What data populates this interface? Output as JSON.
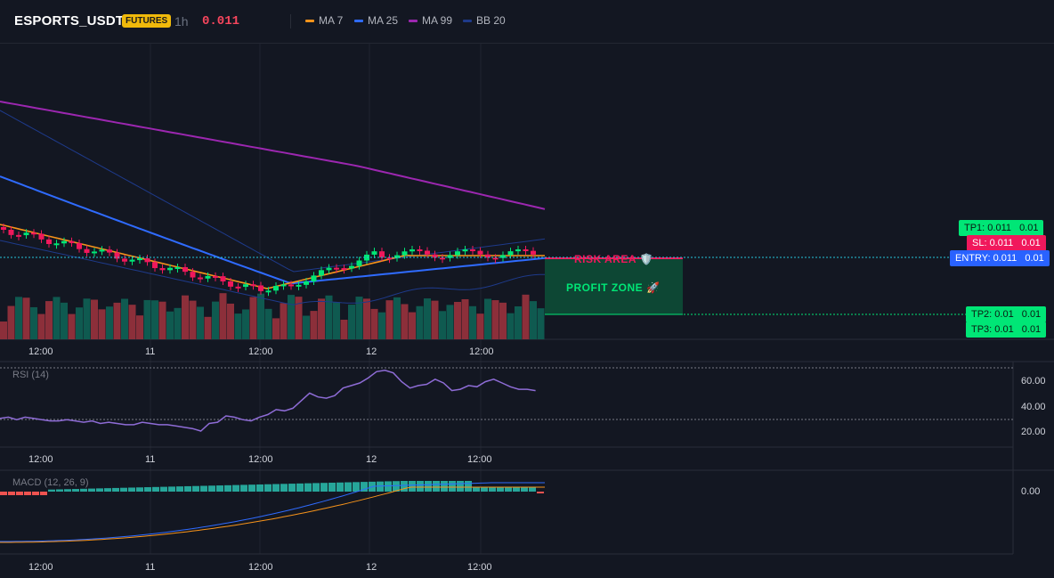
{
  "header": {
    "symbol": "ESPORTS_USDT",
    "badge": "FUTURES",
    "interval": "1h",
    "price": "0.011",
    "legend": [
      {
        "label": "MA 7",
        "color": "#f7931a"
      },
      {
        "label": "MA 25",
        "color": "#2f6bff"
      },
      {
        "label": "MA 99",
        "color": "#9c27b0"
      },
      {
        "label": "BB 20",
        "color": "#1e3a8a"
      }
    ]
  },
  "main_chart": {
    "price_tags": {
      "tp1_label": "TP1: 0.011",
      "tp1_value": "0.01",
      "sl_label": "SL: 0.011",
      "sl_value": "0.01",
      "entry_label": "ENTRY: 0.011",
      "entry_value": "0.01",
      "tp2_label": "TP2: 0.01",
      "tp2_value": "0.01",
      "tp3_label": "TP3: 0.01",
      "tp3_value": "0.01"
    },
    "risk_label": "RISK AREA 🛡️",
    "profit_label": "PROFIT ZONE 🚀",
    "colors": {
      "up": "#26a69a",
      "down": "#ef5350",
      "candle_up": "#00e676",
      "candle_down": "#f0185c"
    }
  },
  "time_axis": [
    "12:00",
    "11",
    "12:00",
    "12",
    "12:00"
  ],
  "rsi": {
    "title": "RSI (14)",
    "ticks": [
      "60.00",
      "40.00",
      "20.00"
    ],
    "values": [
      30,
      31,
      29,
      31,
      30,
      29,
      28,
      28,
      29,
      28,
      27,
      28,
      26,
      27,
      26,
      25,
      25,
      27,
      26,
      25,
      25,
      24,
      23,
      22,
      20,
      26,
      27,
      32,
      31,
      29,
      28,
      31,
      33,
      37,
      36,
      38,
      44,
      50,
      47,
      46,
      48,
      54,
      56,
      58,
      62,
      67,
      68,
      66,
      59,
      54,
      56,
      57,
      61,
      58,
      52,
      53,
      56,
      55,
      59,
      61,
      58,
      55,
      53,
      53,
      52
    ]
  },
  "macd": {
    "title": "MACD (12, 26, 9)",
    "ticks": [
      "0.00"
    ]
  }
}
